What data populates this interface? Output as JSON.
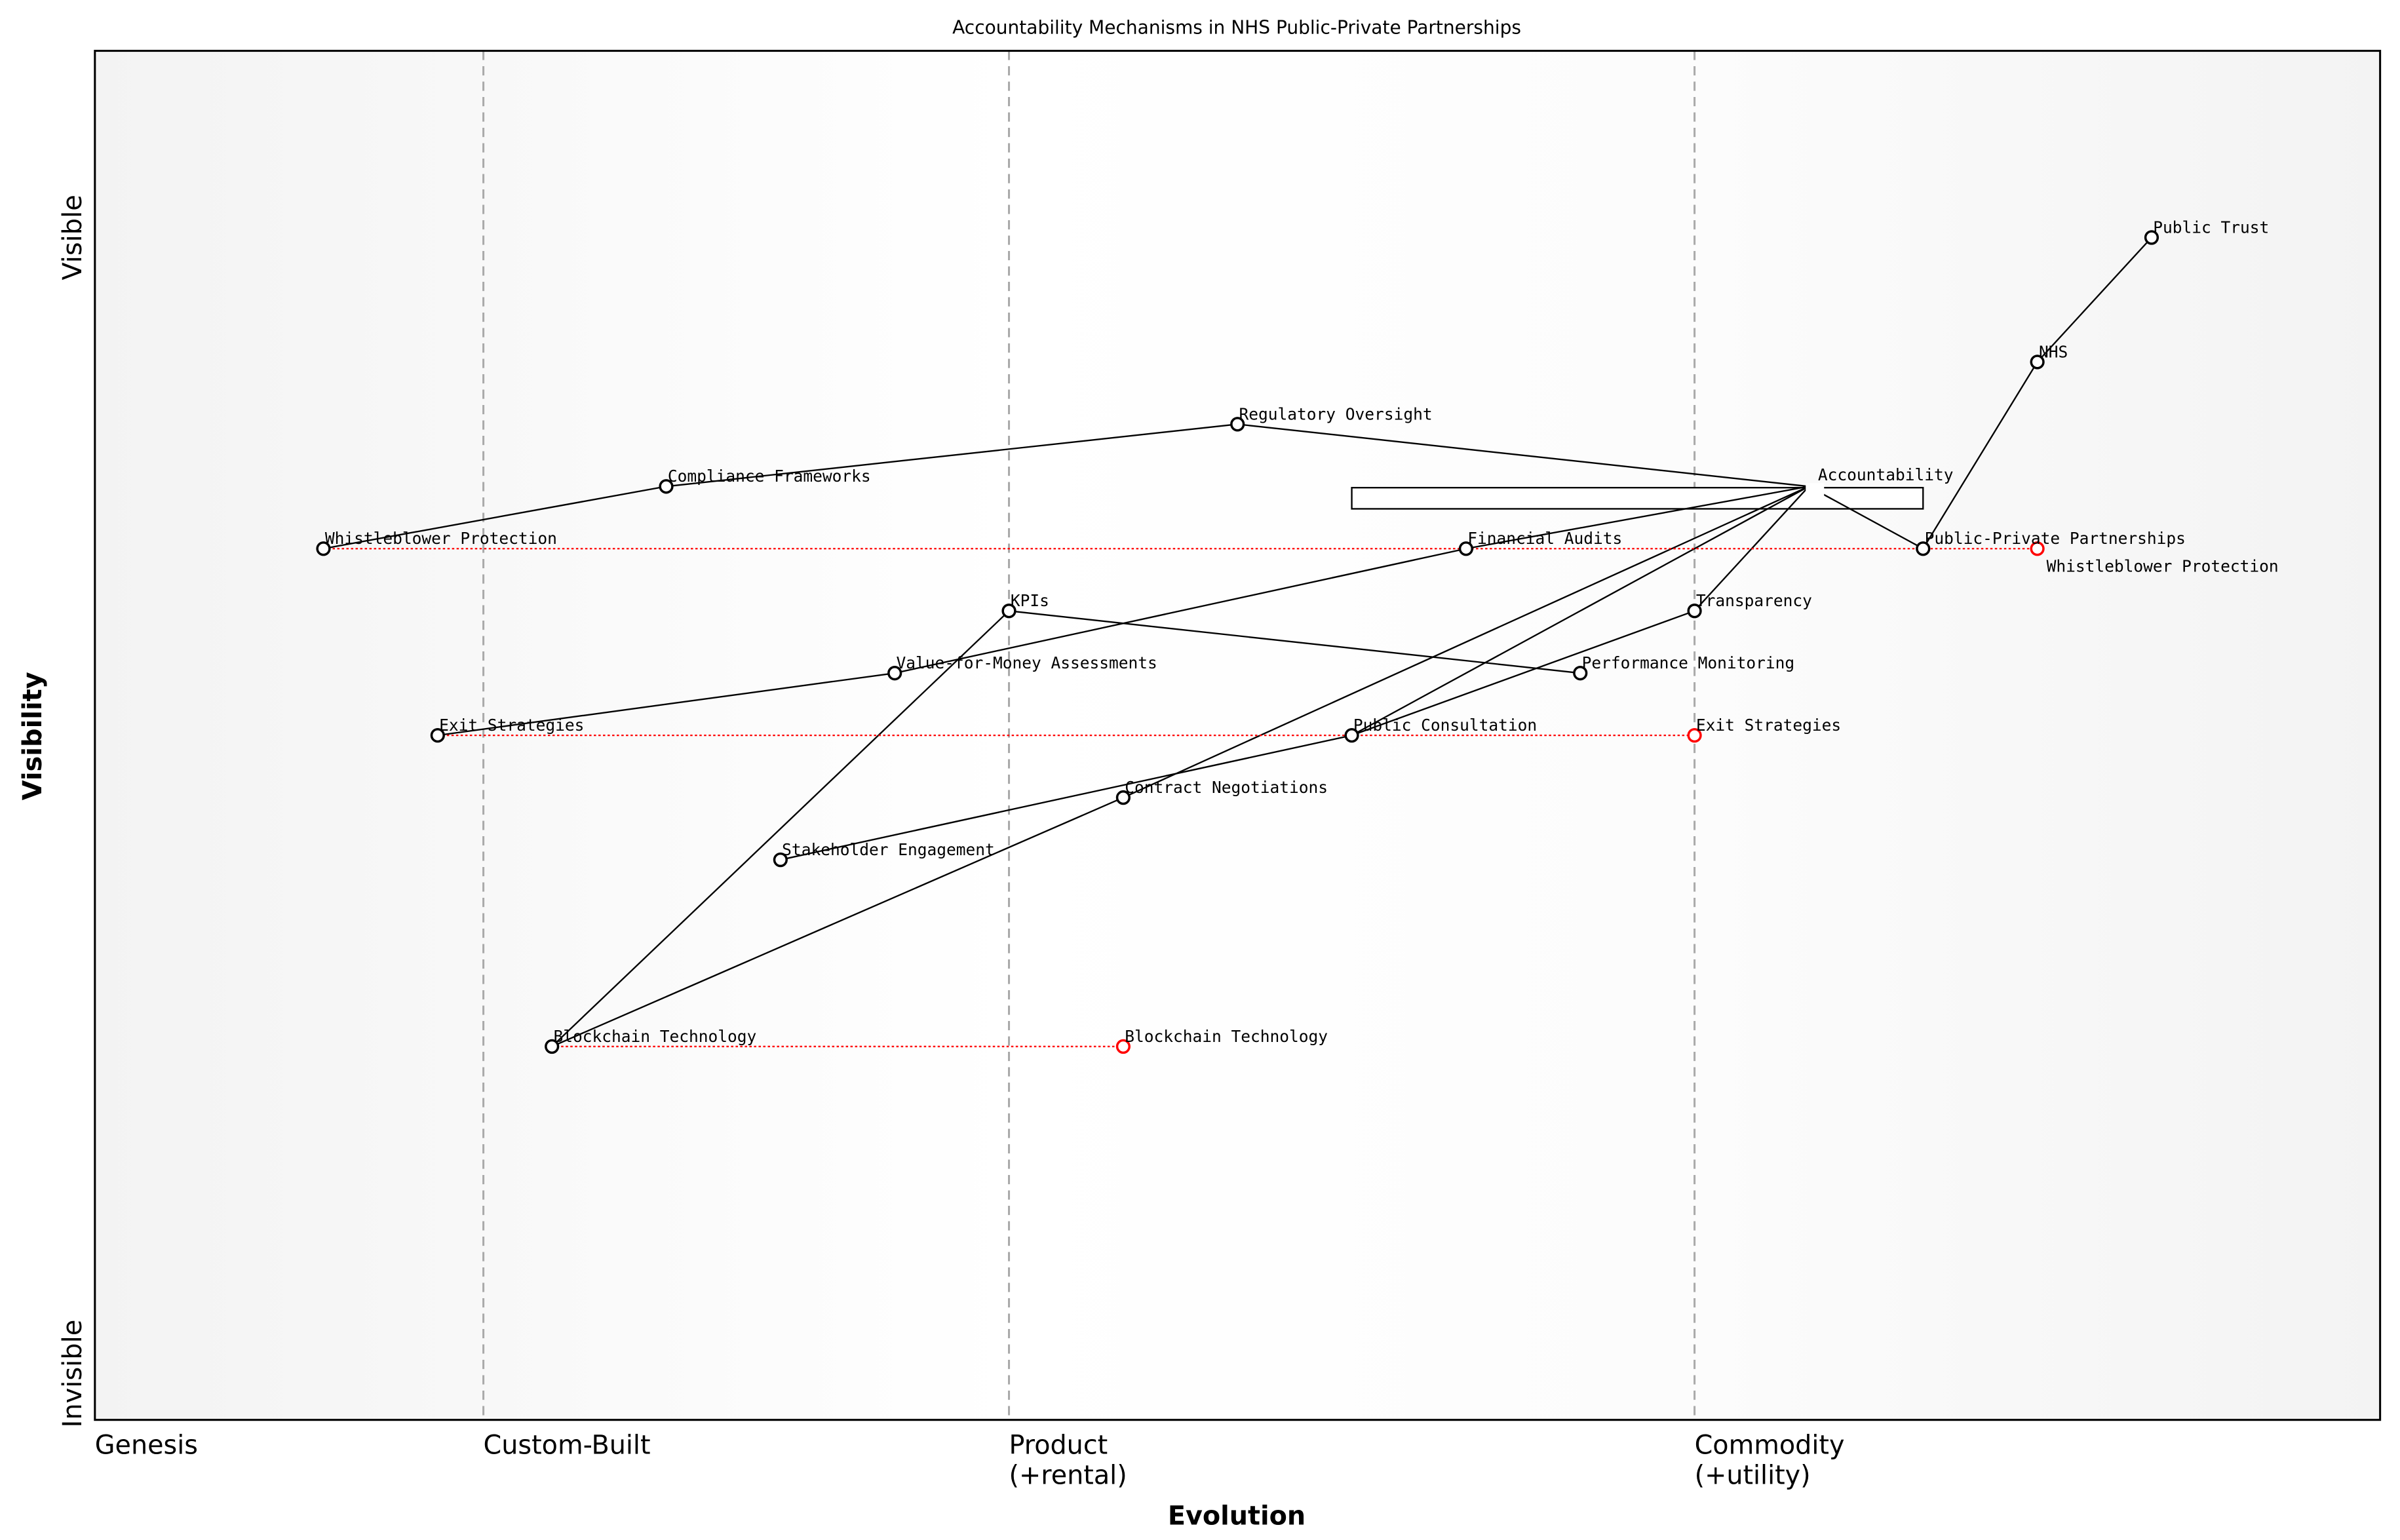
{
  "chart_data": {
    "type": "wardley-map",
    "title": "Accountability Mechanisms in NHS Public-Private Partnerships",
    "xlabel": "Evolution",
    "ylabel": "Visibility",
    "xlim": [
      0,
      1
    ],
    "ylim": [
      0,
      1.1
    ],
    "y_ticks": [
      {
        "value": 0,
        "label": "Invisible"
      },
      {
        "value": 0.95,
        "label": "Visible"
      }
    ],
    "stages": [
      {
        "value": 0,
        "label": "Genesis"
      },
      {
        "value": 0.17,
        "label": "Custom-Built"
      },
      {
        "value": 0.4,
        "label": "Product\n(+rental)"
      },
      {
        "value": 0.7,
        "label": "Commodity\n(+utility)"
      }
    ],
    "stage_lines": [
      0.17,
      0.4,
      0.7
    ],
    "components": [
      {
        "name": "Public Trust",
        "evolution": 0.9,
        "visibility": 0.95
      },
      {
        "name": "NHS",
        "evolution": 0.85,
        "visibility": 0.85
      },
      {
        "name": "Public-Private Partnerships",
        "evolution": 0.8,
        "visibility": 0.7
      },
      {
        "name": "Accountability",
        "evolution": 0.75,
        "visibility": 0.75
      },
      {
        "name": "Regulatory Oversight",
        "evolution": 0.5,
        "visibility": 0.8
      },
      {
        "name": "Compliance Frameworks",
        "evolution": 0.25,
        "visibility": 0.75
      },
      {
        "name": "Whistleblower Protection",
        "evolution": 0.1,
        "visibility": 0.7
      },
      {
        "name": "Financial Audits",
        "evolution": 0.6,
        "visibility": 0.7
      },
      {
        "name": "KPIs",
        "evolution": 0.4,
        "visibility": 0.65
      },
      {
        "name": "Transparency",
        "evolution": 0.7,
        "visibility": 0.65
      },
      {
        "name": "Value-for-Money Assessments",
        "evolution": 0.35,
        "visibility": 0.6
      },
      {
        "name": "Performance Monitoring",
        "evolution": 0.65,
        "visibility": 0.6
      },
      {
        "name": "Exit Strategies",
        "evolution": 0.15,
        "visibility": 0.55
      },
      {
        "name": "Public Consultation",
        "evolution": 0.55,
        "visibility": 0.55
      },
      {
        "name": "Contract Negotiations",
        "evolution": 0.45,
        "visibility": 0.5
      },
      {
        "name": "Stakeholder Engagement",
        "evolution": 0.3,
        "visibility": 0.45
      },
      {
        "name": "Blockchain Technology",
        "evolution": 0.2,
        "visibility": 0.3
      }
    ],
    "links": [
      [
        "Public Trust",
        "NHS"
      ],
      [
        "NHS",
        "Public-Private Partnerships"
      ],
      [
        "Public-Private Partnerships",
        "Accountability"
      ],
      [
        "Accountability",
        "Regulatory Oversight"
      ],
      [
        "Regulatory Oversight",
        "Compliance Frameworks"
      ],
      [
        "Compliance Frameworks",
        "Whistleblower Protection"
      ],
      [
        "Accountability",
        "Financial Audits"
      ],
      [
        "Financial Audits",
        "Value-for-Money Assessments"
      ],
      [
        "Value-for-Money Assessments",
        "Exit Strategies"
      ],
      [
        "Accountability",
        "Transparency"
      ],
      [
        "Accountability",
        "Public Consultation"
      ],
      [
        "Accountability",
        "Contract Negotiations"
      ],
      [
        "Transparency",
        "Public Consultation"
      ],
      [
        "Public Consultation",
        "Stakeholder Engagement"
      ],
      [
        "Contract Negotiations",
        "Blockchain Technology"
      ],
      [
        "KPIs",
        "Blockchain Technology"
      ],
      [
        "KPIs",
        "Performance Monitoring"
      ]
    ],
    "evolutions": [
      {
        "name": "Whistleblower Protection",
        "from": 0.1,
        "to": 0.85,
        "visibility": 0.7
      },
      {
        "name": "Exit Strategies",
        "from": 0.15,
        "to": 0.7,
        "visibility": 0.55
      },
      {
        "name": "Blockchain Technology",
        "from": 0.2,
        "to": 0.45,
        "visibility": 0.3
      }
    ],
    "pipeline": {
      "component": "Accountability",
      "evolution_range": [
        0.55,
        0.8
      ],
      "visibility_range": [
        0.732,
        0.749
      ]
    },
    "colors": {
      "component": "#000000",
      "evolved": "#ff0000",
      "evolve_line": "#ff0000",
      "stage_line": "#aaaaaa",
      "background_edge": "#f3f3f3",
      "background_center": "#ffffff"
    },
    "grid": false,
    "legend": "none"
  }
}
